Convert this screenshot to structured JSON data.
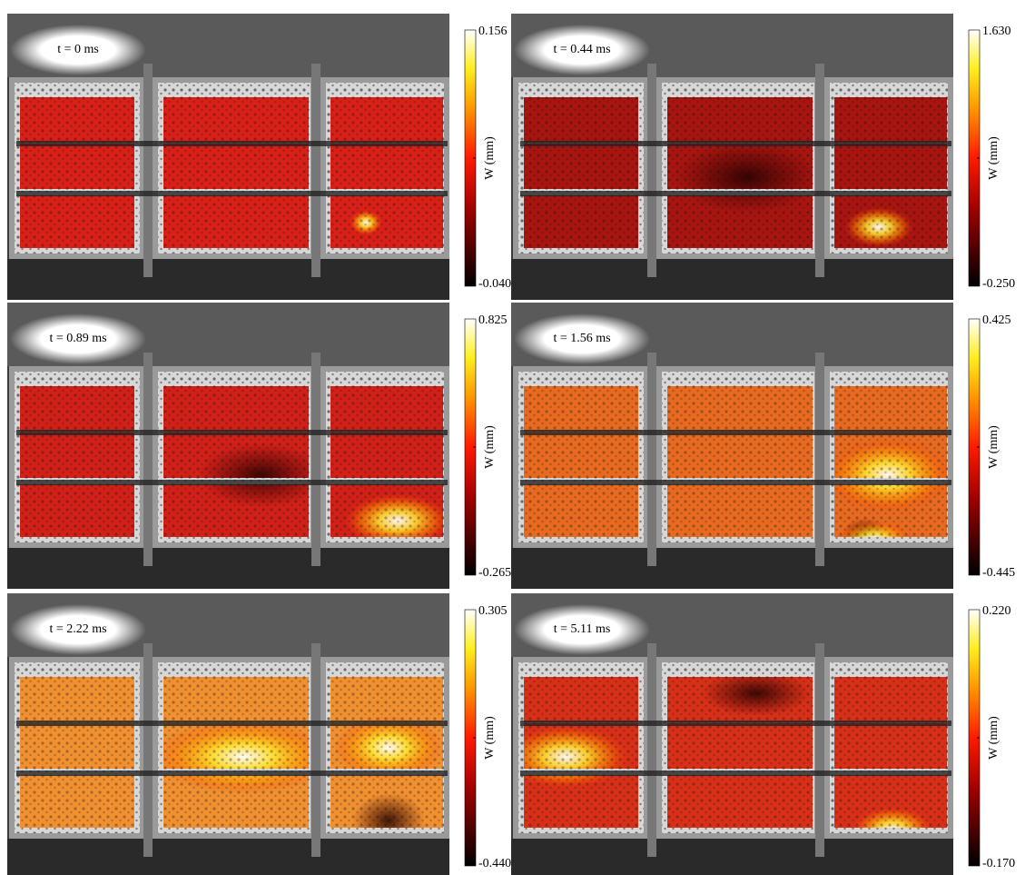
{
  "panels": [
    {
      "time": "t = 0 ms",
      "colorbar_max": "0.156",
      "colorbar_min": "-0.040",
      "axis_label": "W (mm)"
    },
    {
      "time": "t = 0.44 ms",
      "colorbar_max": "1.630",
      "colorbar_min": "-0.250",
      "axis_label": "W (mm)"
    },
    {
      "time": "t = 0.89 ms",
      "colorbar_max": "0.825",
      "colorbar_min": "-0.265",
      "axis_label": "W (mm)"
    },
    {
      "time": "t = 1.56 ms",
      "colorbar_max": "0.425",
      "colorbar_min": "-0.445",
      "axis_label": "W (mm)"
    },
    {
      "time": "t = 2.22 ms",
      "colorbar_max": "0.305",
      "colorbar_min": "-0.440",
      "axis_label": "W (mm)"
    },
    {
      "time": "t = 5.11 ms",
      "colorbar_max": "0.220",
      "colorbar_min": "-0.170",
      "axis_label": "W (mm)"
    }
  ]
}
